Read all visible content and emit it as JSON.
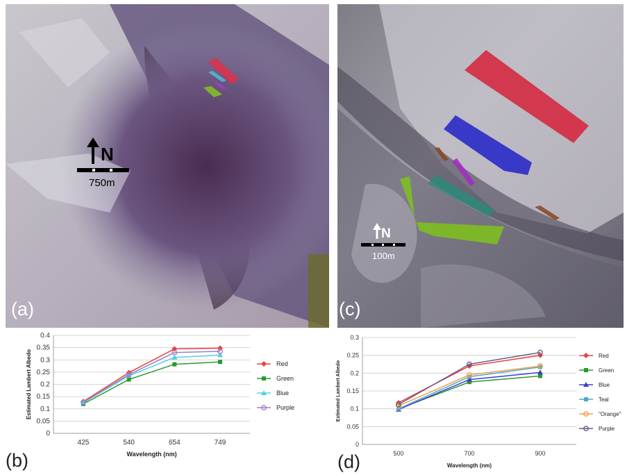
{
  "panels": {
    "a": {
      "label": "(a)",
      "north": "N",
      "scale": "750m"
    },
    "b": {
      "label": "(b)"
    },
    "c": {
      "label": "(c)",
      "north": "N",
      "scale": "100m"
    },
    "d": {
      "label": "(d)"
    }
  },
  "chart_data": [
    {
      "type": "line",
      "panel": "b",
      "categories": [
        "425",
        "540",
        "654",
        "749"
      ],
      "xlabel": "Wavelength (nm)",
      "ylabel": "Estimated Lambert Albedo",
      "ylim": [
        0,
        0.4
      ],
      "yticks": [
        "0",
        "0.05",
        "0.1",
        "0.15",
        "0.2",
        "0.25",
        "0.3",
        "0.35",
        "0.4"
      ],
      "grid": true,
      "legend": "right",
      "series": [
        {
          "name": "Red",
          "color": "#e8413c",
          "marker": "diamond",
          "values": [
            0.13,
            0.248,
            0.345,
            0.348
          ]
        },
        {
          "name": "Green",
          "color": "#2a9a2a",
          "marker": "square",
          "values": [
            0.12,
            0.22,
            0.282,
            0.292
          ]
        },
        {
          "name": "Blue",
          "color": "#4fd0e6",
          "marker": "triangle",
          "values": [
            0.125,
            0.235,
            0.31,
            0.32
          ]
        },
        {
          "name": "Purple",
          "color": "#9b7fc9",
          "marker": "circle",
          "values": [
            0.127,
            0.24,
            0.33,
            0.335
          ]
        }
      ]
    },
    {
      "type": "line",
      "panel": "d",
      "categories": [
        "500",
        "700",
        "900"
      ],
      "xlabel": "Wavelength (nm)",
      "ylabel": "Estimated Lambert Albedo",
      "ylim": [
        0,
        0.3
      ],
      "yticks": [
        "0",
        "0.05",
        "0.1",
        "0.15",
        "0.2",
        "0.25",
        "0.3"
      ],
      "grid": true,
      "legend": "right",
      "series": [
        {
          "name": "Red",
          "color": "#e8413c",
          "marker": "diamond",
          "values": [
            0.117,
            0.22,
            0.25
          ]
        },
        {
          "name": "Green",
          "color": "#2a9a2a",
          "marker": "square",
          "values": [
            0.1,
            0.175,
            0.192
          ]
        },
        {
          "name": "Blue",
          "color": "#3d3dd6",
          "marker": "triangle",
          "values": [
            0.098,
            0.182,
            0.202
          ]
        },
        {
          "name": "Teal",
          "color": "#4fa9c4",
          "marker": "square",
          "values": [
            0.1,
            0.19,
            0.217
          ]
        },
        {
          "name": "\"Orange\"",
          "color": "#f0a04c",
          "marker": "circle",
          "values": [
            0.108,
            0.195,
            0.22
          ]
        },
        {
          "name": "Purple",
          "color": "#6a5a8c",
          "marker": "circle",
          "values": [
            0.112,
            0.225,
            0.258
          ]
        }
      ]
    }
  ]
}
